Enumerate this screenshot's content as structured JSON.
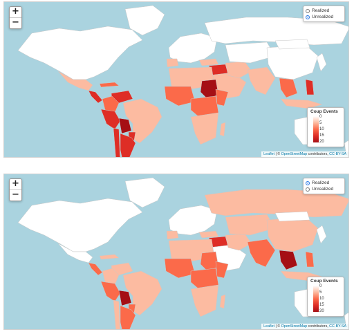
{
  "colors": {
    "ocean": "#aad3df",
    "scale": [
      "#ffffff",
      "#fcbba1",
      "#fb6a4a",
      "#de2d26",
      "#a50f15"
    ]
  },
  "maps": [
    {
      "name": "unrealized",
      "zoom": {
        "in_label": "+",
        "out_label": "−"
      },
      "layers": [
        {
          "label": "Realized",
          "selected": false
        },
        {
          "label": "Unrealized",
          "selected": true
        }
      ],
      "legend": {
        "title": "Coup Events",
        "ticks": [
          "0",
          "5",
          "10",
          "15",
          "20"
        ]
      },
      "attribution": {
        "leaflet": "Leaflet",
        "sep": " | © ",
        "osm": "OpenStreetMap",
        "mid": " contributors, ",
        "license": "CC-BY-SA"
      },
      "regions": [
        {
          "id": "north-america",
          "level": 0
        },
        {
          "id": "greenland",
          "level": 0
        },
        {
          "id": "mexico",
          "level": 1
        },
        {
          "id": "central-america",
          "level": 3
        },
        {
          "id": "caribbean",
          "level": 2
        },
        {
          "id": "venezuela",
          "level": 3
        },
        {
          "id": "colombia",
          "level": 2
        },
        {
          "id": "brazil",
          "level": 1
        },
        {
          "id": "peru-ecuador",
          "level": 3
        },
        {
          "id": "bolivia",
          "level": 4
        },
        {
          "id": "paraguay",
          "level": 3
        },
        {
          "id": "argentina",
          "level": 3
        },
        {
          "id": "chile",
          "level": 3
        },
        {
          "id": "europe",
          "level": 0
        },
        {
          "id": "iberia",
          "level": 1
        },
        {
          "id": "russia",
          "level": 0
        },
        {
          "id": "turkey",
          "level": 1
        },
        {
          "id": "syria-iraq",
          "level": 3
        },
        {
          "id": "arabia",
          "level": 1
        },
        {
          "id": "iran",
          "level": 1
        },
        {
          "id": "central-asia",
          "level": 0
        },
        {
          "id": "south-asia",
          "level": 1
        },
        {
          "id": "china",
          "level": 0
        },
        {
          "id": "mongolia",
          "level": 0
        },
        {
          "id": "se-asia",
          "level": 2
        },
        {
          "id": "philippines",
          "level": 3
        },
        {
          "id": "indonesia",
          "level": 1
        },
        {
          "id": "japan",
          "level": 0
        },
        {
          "id": "north-africa",
          "level": 1
        },
        {
          "id": "west-africa",
          "level": 2
        },
        {
          "id": "sudan",
          "level": 4
        },
        {
          "id": "horn",
          "level": 2
        },
        {
          "id": "central-africa",
          "level": 2
        },
        {
          "id": "southern-africa",
          "level": 1
        },
        {
          "id": "madagascar",
          "level": 1
        },
        {
          "id": "australia",
          "level": 0
        },
        {
          "id": "new-zealand",
          "level": 0
        }
      ]
    },
    {
      "name": "realized",
      "zoom": {
        "in_label": "+",
        "out_label": "−"
      },
      "layers": [
        {
          "label": "Realized",
          "selected": true
        },
        {
          "label": "Unrealized",
          "selected": false
        }
      ],
      "legend": {
        "title": "Coup Events",
        "ticks": [
          "0",
          "5",
          "10",
          "15",
          "20"
        ]
      },
      "attribution": {
        "leaflet": "Leaflet",
        "sep": " | © ",
        "osm": "OpenStreetMap",
        "mid": " contributors, ",
        "license": "CC-BY-SA"
      },
      "regions": [
        {
          "id": "north-america",
          "level": 0
        },
        {
          "id": "greenland",
          "level": 0
        },
        {
          "id": "mexico",
          "level": 0
        },
        {
          "id": "central-america",
          "level": 2
        },
        {
          "id": "caribbean",
          "level": 1
        },
        {
          "id": "venezuela",
          "level": 1
        },
        {
          "id": "colombia",
          "level": 1
        },
        {
          "id": "brazil",
          "level": 1
        },
        {
          "id": "peru-ecuador",
          "level": 2
        },
        {
          "id": "bolivia",
          "level": 4
        },
        {
          "id": "paraguay",
          "level": 2
        },
        {
          "id": "argentina",
          "level": 2
        },
        {
          "id": "chile",
          "level": 1
        },
        {
          "id": "europe",
          "level": 0
        },
        {
          "id": "iberia",
          "level": 1
        },
        {
          "id": "russia",
          "level": 1
        },
        {
          "id": "turkey",
          "level": 1
        },
        {
          "id": "syria-iraq",
          "level": 3
        },
        {
          "id": "arabia",
          "level": 0
        },
        {
          "id": "iran",
          "level": 1
        },
        {
          "id": "central-asia",
          "level": 1
        },
        {
          "id": "south-asia",
          "level": 2
        },
        {
          "id": "china",
          "level": 1
        },
        {
          "id": "mongolia",
          "level": 0
        },
        {
          "id": "se-asia",
          "level": 4
        },
        {
          "id": "philippines",
          "level": 2
        },
        {
          "id": "indonesia",
          "level": 1
        },
        {
          "id": "japan",
          "level": 0
        },
        {
          "id": "north-africa",
          "level": 1
        },
        {
          "id": "west-africa",
          "level": 2
        },
        {
          "id": "sudan",
          "level": 2
        },
        {
          "id": "horn",
          "level": 2
        },
        {
          "id": "central-africa",
          "level": 2
        },
        {
          "id": "southern-africa",
          "level": 1
        },
        {
          "id": "madagascar",
          "level": 1
        },
        {
          "id": "australia",
          "level": 0
        },
        {
          "id": "new-zealand",
          "level": 0
        }
      ]
    }
  ]
}
